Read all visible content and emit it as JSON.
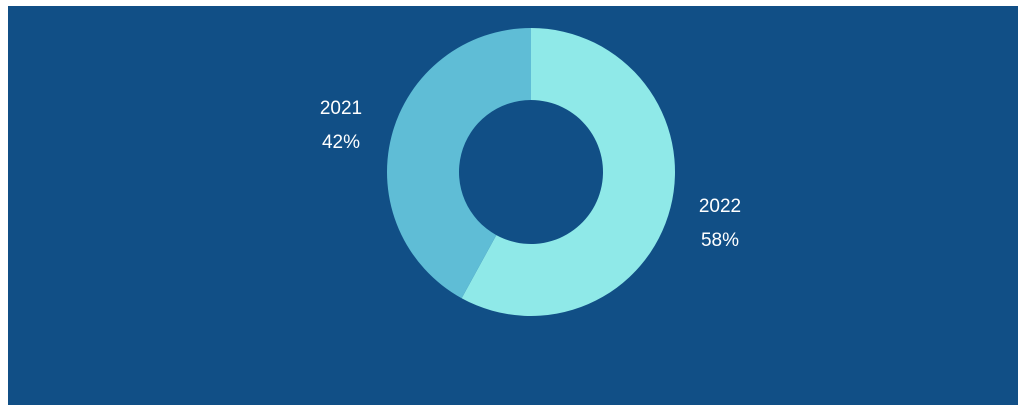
{
  "chart_data": {
    "type": "pie",
    "variant": "donut",
    "title": "",
    "background_color": "#114f86",
    "slices": [
      {
        "label": "2022",
        "percent_label": "58%",
        "value": 58,
        "color": "#8fe9e8"
      },
      {
        "label": "2021",
        "percent_label": "42%",
        "value": 42,
        "color": "#5fbdd6"
      }
    ],
    "legend": "none",
    "data_labels": "outside"
  }
}
